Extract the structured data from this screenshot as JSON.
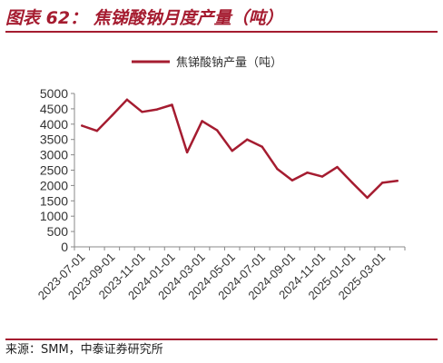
{
  "figure": {
    "title": "图表 62： 焦锑酸钠月度产量（吨）",
    "source": "来源：SMM，中泰证券研究所"
  },
  "colors": {
    "accent": "#a51c30",
    "series": "#a51c30",
    "axis": "#888888",
    "text": "#333333"
  },
  "chart_data": {
    "type": "line",
    "title": "",
    "xlabel": "",
    "ylabel": "",
    "ylim": [
      0,
      5000
    ],
    "yticks": [
      0,
      500,
      1000,
      1500,
      2000,
      2500,
      3000,
      3500,
      4000,
      4500,
      5000
    ],
    "grid": false,
    "legend": "top-center",
    "x": [
      "2023-07-01",
      "2023-08-01",
      "2023-09-01",
      "2023-10-01",
      "2023-11-01",
      "2023-12-01",
      "2024-01-01",
      "2024-02-01",
      "2024-03-01",
      "2024-04-01",
      "2024-05-01",
      "2024-06-01",
      "2024-07-01",
      "2024-08-01",
      "2024-09-01",
      "2024-10-01",
      "2024-11-01",
      "2024-12-01",
      "2025-01-01",
      "2025-02-01",
      "2025-03-01",
      "2025-04-01"
    ],
    "xtick_labels": [
      "2023-07-01",
      "2023-09-01",
      "2023-11-01",
      "2024-01-01",
      "2024-03-01",
      "2024-05-01",
      "2024-07-01",
      "2024-09-01",
      "2024-11-01",
      "2025-01-01",
      "2025-03-01"
    ],
    "series": [
      {
        "name": "焦锑酸钠产量（吨）",
        "values": [
          3950,
          3780,
          4280,
          4800,
          4400,
          4480,
          4630,
          3080,
          4100,
          3800,
          3130,
          3500,
          3260,
          2540,
          2170,
          2420,
          2290,
          2600,
          2090,
          1600,
          2090,
          2150
        ]
      }
    ]
  }
}
